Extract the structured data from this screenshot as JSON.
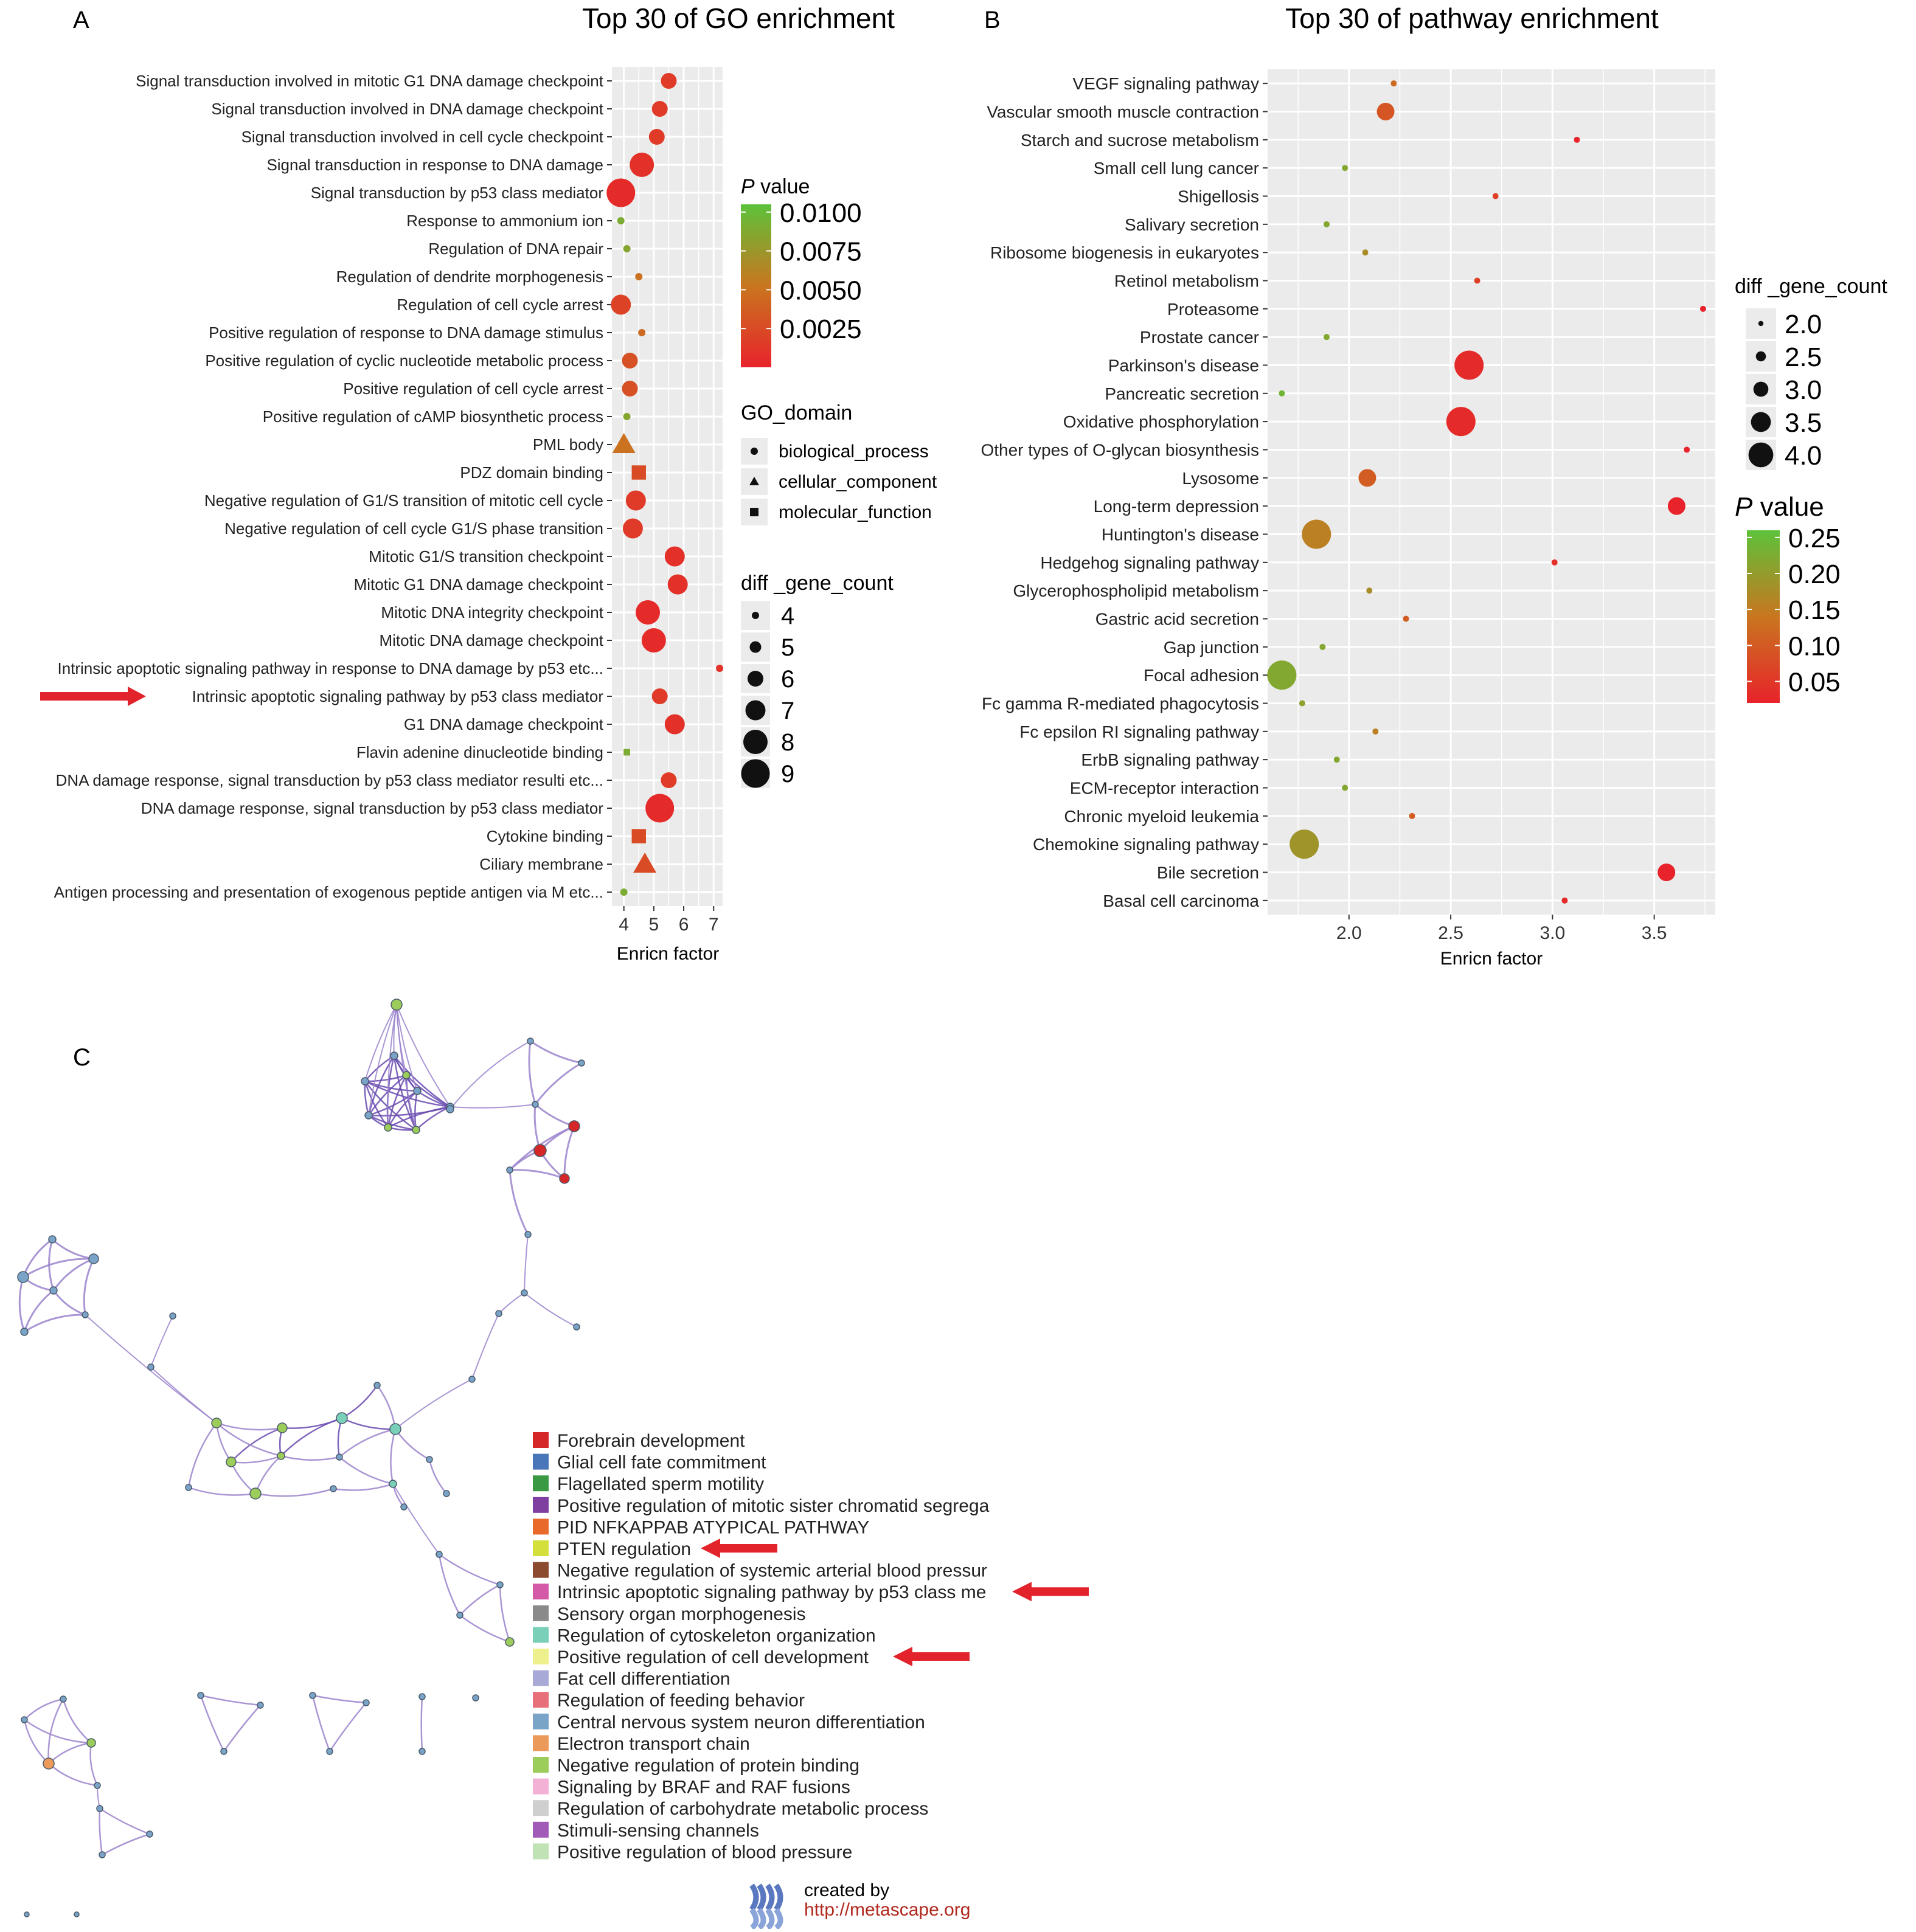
{
  "panels": {
    "A": {
      "letter": "A",
      "chart_data": {
        "type": "scatter",
        "title": "Top 30 of GO enrichment",
        "xlabel": "Enricn factor",
        "xticks": [
          4,
          5,
          6,
          7
        ],
        "xlim": [
          3.6,
          7.3
        ],
        "grid": true,
        "categories": [
          "Signal transduction involved in mitotic G1 DNA damage checkpoint",
          "Signal transduction involved in DNA damage checkpoint",
          "Signal transduction involved in cell cycle checkpoint",
          "Signal transduction in response to DNA damage",
          "Signal transduction by p53 class mediator",
          "Response to ammonium ion",
          "Regulation of DNA repair",
          "Regulation of dendrite morphogenesis",
          "Regulation of cell cycle arrest",
          "Positive regulation of response to DNA damage stimulus",
          "Positive regulation of cyclic nucleotide metabolic process",
          "Positive regulation of cell cycle arrest",
          "Positive regulation of cAMP biosynthetic process",
          "PML body",
          "PDZ domain binding",
          "Negative regulation of G1/S transition of mitotic cell cycle",
          "Negative regulation of cell cycle G1/S phase transition",
          "Mitotic G1/S transition checkpoint",
          "Mitotic G1 DNA damage checkpoint",
          "Mitotic DNA integrity checkpoint",
          "Mitotic DNA damage checkpoint",
          "Intrinsic apoptotic signaling pathway in response to DNA damage by p53 etc...",
          "Intrinsic apoptotic signaling pathway by p53 class mediator",
          "G1 DNA damage checkpoint",
          "Flavin adenine dinucleotide binding",
          "DNA damage response, signal transduction by p53 class mediator resulti etc...",
          "DNA damage response, signal transduction by p53 class mediator",
          "Cytokine binding",
          "Ciliary membrane",
          "Antigen processing and presentation of exogenous peptide antigen via M etc..."
        ],
        "x": [
          5.5,
          5.2,
          5.1,
          4.6,
          3.9,
          3.9,
          4.1,
          4.5,
          3.9,
          4.6,
          4.2,
          4.2,
          4.1,
          4.0,
          4.5,
          4.4,
          4.3,
          5.7,
          5.8,
          4.8,
          5.0,
          7.2,
          5.2,
          5.7,
          4.1,
          5.5,
          5.2,
          4.5,
          4.7,
          4.0
        ],
        "count": [
          6,
          6,
          6,
          8,
          9,
          4,
          4,
          4,
          7,
          4,
          6,
          6,
          4,
          7,
          6,
          7,
          7,
          7,
          7,
          8,
          8,
          4,
          6,
          7,
          4,
          6,
          9,
          6,
          7,
          4
        ],
        "pvalue": [
          0.0015,
          0.0015,
          0.0015,
          0.0008,
          0.0005,
          0.009,
          0.0085,
          0.005,
          0.002,
          0.0045,
          0.003,
          0.003,
          0.0085,
          0.005,
          0.0025,
          0.0015,
          0.0015,
          0.0008,
          0.0008,
          0.0005,
          0.0005,
          0.001,
          0.0015,
          0.0008,
          0.009,
          0.0015,
          0.0005,
          0.0025,
          0.0025,
          0.009
        ],
        "domain": [
          "bp",
          "bp",
          "bp",
          "bp",
          "bp",
          "bp",
          "bp",
          "bp",
          "bp",
          "bp",
          "bp",
          "bp",
          "bp",
          "cc",
          "mf",
          "bp",
          "bp",
          "bp",
          "bp",
          "bp",
          "bp",
          "bp",
          "bp",
          "bp",
          "mf",
          "bp",
          "bp",
          "mf",
          "cc",
          "bp"
        ],
        "highlight_index": 22,
        "pvalue_legend": {
          "title_italic": "P",
          "title_rest": " value",
          "range": [
            0.0,
            0.0105
          ],
          "ticks": [
            "0.0100",
            "0.0075",
            "0.0050",
            "0.0025"
          ],
          "tick_values": [
            0.01,
            0.0075,
            0.005,
            0.0025
          ]
        },
        "domain_legend": {
          "title": "GO_domain",
          "entries": [
            {
              "key": "bp",
              "label": "biological_process"
            },
            {
              "key": "cc",
              "label": "cellular_component"
            },
            {
              "key": "mf",
              "label": "molecular_function"
            }
          ]
        },
        "size_legend": {
          "title": "diff _gene_count",
          "values": [
            4,
            5,
            6,
            7,
            8,
            9
          ],
          "labels": [
            "4",
            "5",
            "6",
            "7",
            "8",
            "9"
          ]
        }
      }
    },
    "B": {
      "letter": "B",
      "chart_data": {
        "type": "scatter",
        "title": "Top 30 of pathway enrichment",
        "xlabel": "Enricn factor",
        "xticks": [
          "2.0",
          "2.5",
          "3.0",
          "3.5"
        ],
        "xlim": [
          1.6,
          3.8
        ],
        "grid": true,
        "categories": [
          "VEGF signaling pathway",
          "Vascular smooth muscle contraction",
          "Starch and sucrose metabolism",
          "Small cell lung cancer",
          "Shigellosis",
          "Salivary secretion",
          "Ribosome biogenesis in eukaryotes",
          "Retinol metabolism",
          "Proteasome",
          "Prostate cancer",
          "Parkinson's disease",
          "Pancreatic secretion",
          "Oxidative phosphorylation",
          "Other types of O-glycan biosynthesis",
          "Lysosome",
          "Long-term depression",
          "Huntington's disease",
          "Hedgehog signaling pathway",
          "Glycerophospholipid metabolism",
          "Gastric acid secretion",
          "Gap junction",
          "Focal adhesion",
          "Fc gamma R-mediated phagocytosis",
          "Fc epsilon RI signaling pathway",
          "ErbB signaling pathway",
          "ECM-receptor interaction",
          "Chronic myeloid leukemia",
          "Chemokine signaling pathway",
          "Bile secretion",
          "Basal cell carcinoma"
        ],
        "x": [
          2.22,
          2.18,
          3.12,
          1.98,
          2.72,
          1.89,
          2.08,
          2.63,
          3.74,
          1.89,
          2.59,
          1.67,
          2.55,
          3.66,
          2.09,
          3.61,
          1.84,
          3.01,
          2.1,
          2.28,
          1.87,
          1.67,
          1.77,
          2.13,
          1.94,
          1.98,
          2.31,
          1.78,
          3.56,
          3.06
        ],
        "count": [
          2,
          3,
          2,
          2,
          2,
          2,
          2,
          2,
          2,
          2,
          4,
          2,
          4,
          2,
          3,
          3,
          4,
          2,
          2,
          2,
          2,
          4,
          2,
          2,
          2,
          2,
          2,
          4,
          3,
          2
        ],
        "pvalue": [
          0.12,
          0.09,
          0.02,
          0.21,
          0.06,
          0.21,
          0.17,
          0.06,
          0.02,
          0.21,
          0.03,
          0.23,
          0.03,
          0.02,
          0.1,
          0.02,
          0.15,
          0.04,
          0.17,
          0.1,
          0.21,
          0.21,
          0.2,
          0.15,
          0.21,
          0.21,
          0.1,
          0.18,
          0.02,
          0.03
        ],
        "pvalue_legend": {
          "title_italic": "P",
          "title_rest": " value",
          "range": [
            0.02,
            0.26
          ],
          "ticks": [
            "0.25",
            "0.20",
            "0.15",
            "0.10",
            "0.05"
          ],
          "tick_values": [
            0.25,
            0.2,
            0.15,
            0.1,
            0.05
          ]
        },
        "size_legend": {
          "title": "diff _gene_count",
          "values": [
            2.0,
            2.5,
            3.0,
            3.5,
            4.0
          ],
          "labels": [
            "2.0",
            "2.5",
            "3.0",
            "3.5",
            "4.0"
          ]
        }
      }
    },
    "C": {
      "letter": "C",
      "legend": [
        {
          "label": "Forebrain development",
          "color": "#d62728"
        },
        {
          "label": "Glial cell fate commitment",
          "color": "#4876b8"
        },
        {
          "label": "Flagellated sperm motility",
          "color": "#3a9a43"
        },
        {
          "label": "Positive regulation of mitotic sister chromatid segrega",
          "color": "#7f3fa0"
        },
        {
          "label": "PID NFKAPPAB ATYPICAL PATHWAY",
          "color": "#e8692a"
        },
        {
          "label": "PTEN regulation",
          "color": "#d4df3b",
          "arrow": true
        },
        {
          "label": "Negative regulation of systemic arterial blood pressur",
          "color": "#8c4a2f"
        },
        {
          "label": "Intrinsic apoptotic signaling pathway by p53 class me",
          "color": "#d45aa8",
          "arrow": true
        },
        {
          "label": "Sensory organ morphogenesis",
          "color": "#8a8a8a"
        },
        {
          "label": "Regulation of cytoskeleton organization",
          "color": "#7acfb9"
        },
        {
          "label": "Positive regulation of cell development",
          "color": "#eef08e",
          "arrow": true
        },
        {
          "label": "Fat cell differentiation",
          "color": "#a9a9d8"
        },
        {
          "label": "Regulation of feeding behavior",
          "color": "#e8707a"
        },
        {
          "label": "Central nervous system neuron differentiation",
          "color": "#7aa3c8"
        },
        {
          "label": "Electron transport chain",
          "color": "#ec9a5a"
        },
        {
          "label": "Negative regulation of protein binding",
          "color": "#9ccc5a"
        },
        {
          "label": "Signaling by BRAF and RAF fusions",
          "color": "#f3b1d6"
        },
        {
          "label": "Regulation of carbohydrate metabolic process",
          "color": "#cfcfcf"
        },
        {
          "label": "Stimuli-sensing channels",
          "color": "#a25ab8"
        },
        {
          "label": "Positive regulation of blood pressure",
          "color": "#bfe3b4"
        }
      ],
      "credit": {
        "line1": "created by",
        "line2": "http://metascape.org"
      }
    }
  },
  "colors": {
    "panel_bg": "#ebebeb",
    "grid": "#ffffff",
    "arrow": "#e3232b",
    "edge": "#9b84cc",
    "edge_dark": "#6a4bb0",
    "credit_link": "#b0281e"
  }
}
